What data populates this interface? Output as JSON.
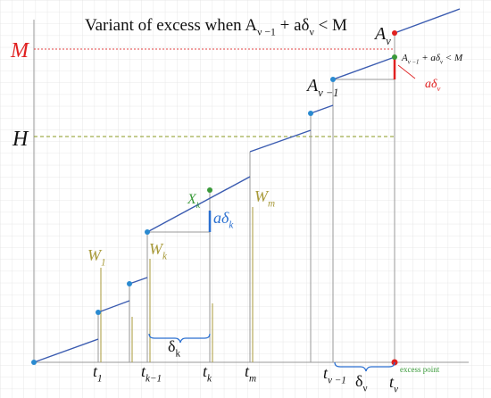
{
  "title": [
    {
      "t": "Variant of excess when A"
    },
    {
      "sub": "ν −1"
    },
    {
      "t": " + aδ"
    },
    {
      "sub": "ν"
    },
    {
      "t": " < M"
    }
  ],
  "labels": {
    "M": [
      {
        "t": "M"
      }
    ],
    "H": [
      {
        "t": "H"
      }
    ],
    "A_nu": [
      {
        "t": "A"
      },
      {
        "sub": "ν"
      }
    ],
    "A_nu_minus_1": [
      {
        "t": "A"
      },
      {
        "sub": "ν −1"
      }
    ],
    "condition": [
      {
        "t": "A"
      },
      {
        "sub": "ν −1"
      },
      {
        "t": " + aδ"
      },
      {
        "sub": "ν"
      },
      {
        "t": " < M"
      }
    ],
    "a_delta_nu": [
      {
        "t": "aδ"
      },
      {
        "sub": "ν"
      }
    ],
    "X_k": [
      {
        "t": "X"
      },
      {
        "sub": "k"
      }
    ],
    "a_delta_k": [
      {
        "t": "aδ"
      },
      {
        "sub": "k"
      }
    ],
    "W_1": [
      {
        "t": "W"
      },
      {
        "sub": "1"
      }
    ],
    "W_k": [
      {
        "t": "W"
      },
      {
        "sub": "k"
      }
    ],
    "W_m": [
      {
        "t": "W"
      },
      {
        "sub": "m"
      }
    ],
    "delta_k": [
      {
        "t": "δ"
      },
      {
        "sub": "k"
      }
    ],
    "delta_nu": [
      {
        "t": "δ"
      },
      {
        "sub": "ν"
      }
    ],
    "t_1": [
      {
        "t": "t"
      },
      {
        "sub": "1"
      }
    ],
    "t_k_minus_1": [
      {
        "t": "t"
      },
      {
        "sub": "k−1"
      }
    ],
    "t_k": [
      {
        "t": "t"
      },
      {
        "sub": "k"
      }
    ],
    "t_m": [
      {
        "t": "t"
      },
      {
        "sub": "m"
      }
    ],
    "t_nu_minus_1": [
      {
        "t": "t"
      },
      {
        "sub": "ν −1"
      }
    ],
    "t_nu": [
      {
        "t": "t"
      },
      {
        "sub": "ν"
      }
    ],
    "excess_point": [
      {
        "t": "excess point"
      }
    ]
  }
}
